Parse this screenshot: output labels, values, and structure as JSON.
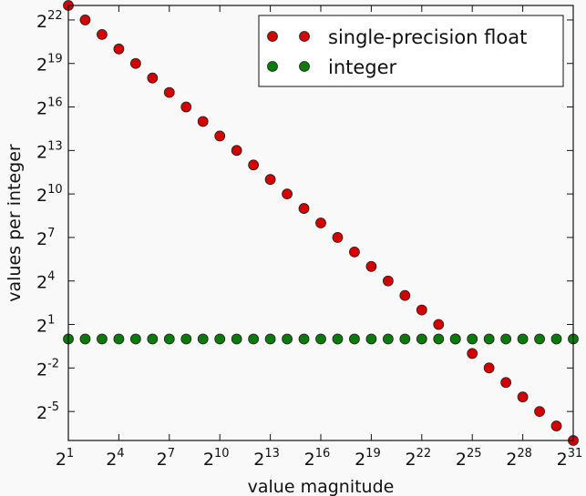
{
  "chart_data": {
    "type": "scatter",
    "xlabel": "value magnitude",
    "ylabel": "values per integer",
    "x_scale": "log2",
    "y_scale": "log2",
    "x_exp_range": [
      1,
      31
    ],
    "y_exp_range": [
      -7,
      23
    ],
    "x_tick_exponents": [
      1,
      4,
      7,
      10,
      13,
      16,
      19,
      22,
      25,
      28,
      31
    ],
    "y_tick_exponents": [
      22,
      19,
      16,
      13,
      10,
      7,
      4,
      1,
      -2,
      -5
    ],
    "tick_base": "2",
    "grid": false,
    "legend_position": "top-right",
    "series": [
      {
        "name": "single-precision float",
        "color": "#d40000",
        "x_exponents": [
          1,
          2,
          3,
          4,
          5,
          6,
          7,
          8,
          9,
          10,
          11,
          12,
          13,
          14,
          15,
          16,
          17,
          18,
          19,
          20,
          21,
          22,
          23,
          24,
          25,
          26,
          27,
          28,
          29,
          30,
          31
        ],
        "y_exponents": [
          23,
          22,
          21,
          20,
          19,
          18,
          17,
          16,
          15,
          14,
          13,
          12,
          11,
          10,
          9,
          8,
          7,
          6,
          5,
          4,
          3,
          2,
          1,
          0,
          -1,
          -2,
          -3,
          -4,
          -5,
          -6,
          -7
        ]
      },
      {
        "name": "integer",
        "color": "#0a7a0a",
        "x_exponents": [
          1,
          2,
          3,
          4,
          5,
          6,
          7,
          8,
          9,
          10,
          11,
          12,
          13,
          14,
          15,
          16,
          17,
          18,
          19,
          20,
          21,
          22,
          23,
          24,
          25,
          26,
          27,
          28,
          29,
          30,
          31
        ],
        "y_exponents": [
          0,
          0,
          0,
          0,
          0,
          0,
          0,
          0,
          0,
          0,
          0,
          0,
          0,
          0,
          0,
          0,
          0,
          0,
          0,
          0,
          0,
          0,
          0,
          0,
          0,
          0,
          0,
          0,
          0,
          0,
          0
        ]
      }
    ]
  }
}
